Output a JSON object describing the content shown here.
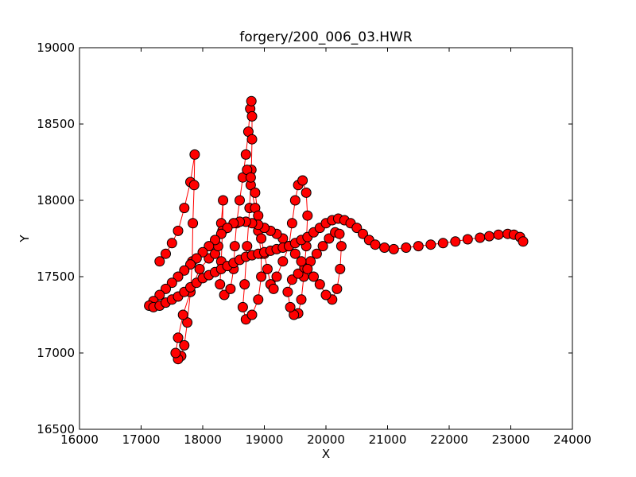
{
  "chart_data": {
    "type": "scatter",
    "title": "forgery/200_006_03.HWR",
    "xlabel": "X",
    "ylabel": "Y",
    "xlim": [
      16000,
      24000
    ],
    "ylim": [
      16500,
      19000
    ],
    "x_ticks": [
      "16000",
      "17000",
      "18000",
      "19000",
      "20000",
      "21000",
      "22000",
      "23000",
      "24000"
    ],
    "y_ticks": [
      "16500",
      "17000",
      "17500",
      "18000",
      "18500",
      "19000"
    ],
    "grid": false,
    "legend": "none",
    "marker_color": "#ff0000",
    "marker_edge_color": "#000000",
    "line_color": "#ff0000",
    "series": [
      {
        "values_xy": [
          [
            17300,
            17600
          ],
          [
            17400,
            17650
          ],
          [
            17500,
            17720
          ],
          [
            17600,
            17800
          ],
          [
            17700,
            17950
          ],
          [
            17800,
            18120
          ],
          [
            17870,
            18300
          ],
          [
            17860,
            18100
          ],
          [
            17840,
            17850
          ],
          [
            17830,
            17600
          ],
          [
            17800,
            17400
          ],
          [
            17750,
            17200
          ],
          [
            17700,
            17050
          ],
          [
            17650,
            16980
          ],
          [
            17600,
            16960
          ],
          [
            17560,
            17000
          ],
          [
            17600,
            17100
          ],
          [
            17680,
            17250
          ],
          [
            17800,
            17400
          ],
          [
            17950,
            17550
          ],
          [
            18100,
            17620
          ],
          [
            18200,
            17650
          ],
          [
            18250,
            17700
          ],
          [
            18300,
            17850
          ],
          [
            18330,
            18000
          ],
          [
            18320,
            17800
          ],
          [
            18300,
            17600
          ],
          [
            18280,
            17450
          ],
          [
            18350,
            17380
          ],
          [
            18450,
            17420
          ],
          [
            18500,
            17550
          ],
          [
            18520,
            17700
          ],
          [
            18550,
            17850
          ],
          [
            18600,
            18000
          ],
          [
            18650,
            18150
          ],
          [
            18700,
            18300
          ],
          [
            18740,
            18450
          ],
          [
            18770,
            18600
          ],
          [
            18790,
            18650
          ],
          [
            18800,
            18550
          ],
          [
            18800,
            18400
          ],
          [
            18790,
            18200
          ],
          [
            18760,
            17950
          ],
          [
            18720,
            17700
          ],
          [
            18680,
            17450
          ],
          [
            18650,
            17300
          ],
          [
            18700,
            17220
          ],
          [
            18800,
            17250
          ],
          [
            18900,
            17350
          ],
          [
            18950,
            17500
          ],
          [
            18950,
            17650
          ],
          [
            18900,
            17800
          ],
          [
            18850,
            17950
          ],
          [
            18780,
            18100
          ],
          [
            18720,
            18200
          ],
          [
            18780,
            18150
          ],
          [
            18850,
            18050
          ],
          [
            18900,
            17900
          ],
          [
            18950,
            17750
          ],
          [
            19000,
            17650
          ],
          [
            19050,
            17550
          ],
          [
            19100,
            17450
          ],
          [
            19150,
            17420
          ],
          [
            19200,
            17500
          ],
          [
            19300,
            17600
          ],
          [
            19400,
            17700
          ],
          [
            19450,
            17850
          ],
          [
            19500,
            18000
          ],
          [
            19550,
            18100
          ],
          [
            19620,
            18130
          ],
          [
            19680,
            18050
          ],
          [
            19700,
            17900
          ],
          [
            19680,
            17700
          ],
          [
            19640,
            17500
          ],
          [
            19600,
            17350
          ],
          [
            19550,
            17260
          ],
          [
            19480,
            17250
          ],
          [
            19420,
            17300
          ],
          [
            19380,
            17400
          ],
          [
            19450,
            17480
          ],
          [
            19550,
            17520
          ],
          [
            19650,
            17560
          ],
          [
            19750,
            17600
          ],
          [
            19850,
            17650
          ],
          [
            19950,
            17700
          ],
          [
            20050,
            17750
          ],
          [
            20150,
            17790
          ],
          [
            20220,
            17780
          ],
          [
            20250,
            17700
          ],
          [
            20230,
            17550
          ],
          [
            20180,
            17420
          ],
          [
            20100,
            17350
          ],
          [
            20000,
            17380
          ],
          [
            19900,
            17450
          ],
          [
            19800,
            17500
          ],
          [
            19700,
            17550
          ],
          [
            19600,
            17600
          ],
          [
            19500,
            17650
          ],
          [
            19400,
            17700
          ],
          [
            19300,
            17750
          ],
          [
            19200,
            17780
          ],
          [
            19100,
            17800
          ],
          [
            19000,
            17820
          ],
          [
            18900,
            17840
          ],
          [
            18800,
            17850
          ],
          [
            18700,
            17860
          ],
          [
            18600,
            17860
          ],
          [
            18500,
            17850
          ],
          [
            18400,
            17820
          ],
          [
            18300,
            17780
          ],
          [
            18200,
            17740
          ],
          [
            18100,
            17700
          ],
          [
            18000,
            17660
          ],
          [
            17900,
            17620
          ],
          [
            17800,
            17580
          ],
          [
            17700,
            17540
          ],
          [
            17600,
            17500
          ],
          [
            17500,
            17460
          ],
          [
            17400,
            17420
          ],
          [
            17300,
            17380
          ],
          [
            17200,
            17340
          ],
          [
            17130,
            17310
          ],
          [
            17200,
            17300
          ],
          [
            17300,
            17310
          ],
          [
            17400,
            17330
          ],
          [
            17500,
            17350
          ],
          [
            17600,
            17370
          ],
          [
            17700,
            17400
          ],
          [
            17800,
            17430
          ],
          [
            17900,
            17460
          ],
          [
            18000,
            17490
          ],
          [
            18100,
            17510
          ],
          [
            18200,
            17530
          ],
          [
            18300,
            17550
          ],
          [
            18400,
            17570
          ],
          [
            18500,
            17590
          ],
          [
            18600,
            17610
          ],
          [
            18700,
            17630
          ],
          [
            18800,
            17640
          ],
          [
            18900,
            17650
          ],
          [
            19000,
            17660
          ],
          [
            19100,
            17670
          ],
          [
            19200,
            17680
          ],
          [
            19300,
            17690
          ],
          [
            19400,
            17700
          ],
          [
            19500,
            17720
          ],
          [
            19600,
            17740
          ],
          [
            19700,
            17760
          ],
          [
            19800,
            17790
          ],
          [
            19900,
            17820
          ],
          [
            20000,
            17850
          ],
          [
            20100,
            17870
          ],
          [
            20200,
            17880
          ],
          [
            20300,
            17870
          ],
          [
            20400,
            17850
          ],
          [
            20500,
            17820
          ],
          [
            20600,
            17780
          ],
          [
            20700,
            17740
          ],
          [
            20800,
            17710
          ],
          [
            20950,
            17690
          ],
          [
            21100,
            17680
          ],
          [
            21300,
            17690
          ],
          [
            21500,
            17700
          ],
          [
            21700,
            17710
          ],
          [
            21900,
            17720
          ],
          [
            22100,
            17730
          ],
          [
            22300,
            17745
          ],
          [
            22500,
            17755
          ],
          [
            22650,
            17765
          ],
          [
            22800,
            17775
          ],
          [
            22950,
            17780
          ],
          [
            23050,
            17775
          ],
          [
            23150,
            17760
          ],
          [
            23200,
            17730
          ]
        ]
      }
    ]
  }
}
